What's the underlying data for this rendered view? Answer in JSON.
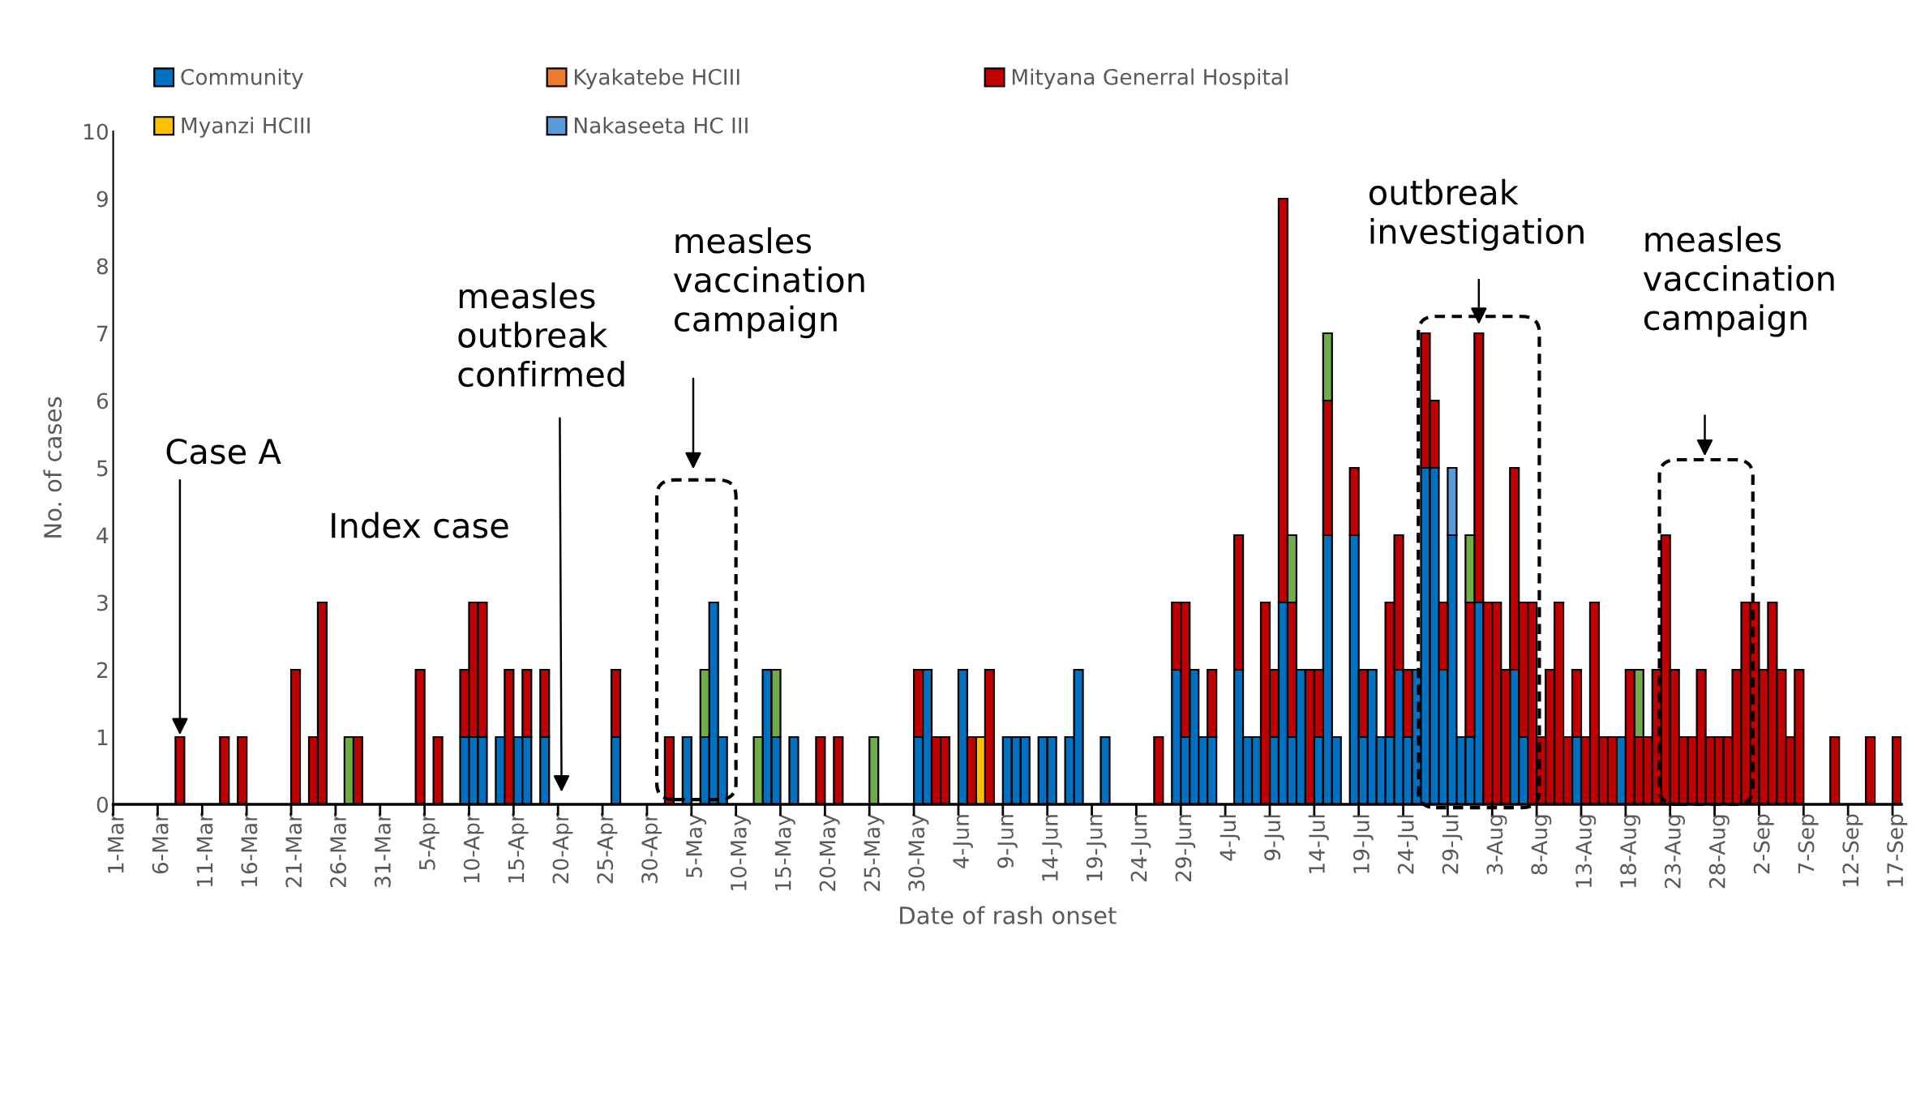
{
  "chart_data": {
    "type": "bar",
    "stacked": true,
    "xlabel": "Date of rash onset",
    "ylabel": "No. of cases",
    "categories": [
      "1-Mar",
      null,
      null,
      null,
      null,
      "6-Mar",
      null,
      null,
      null,
      null,
      "11-Mar",
      null,
      null,
      null,
      null,
      "16-Mar",
      null,
      null,
      null,
      null,
      "21-Mar",
      null,
      null,
      null,
      null,
      "26-Mar",
      null,
      null,
      null,
      null,
      "31-Mar",
      null,
      null,
      null,
      null,
      "5-Apr",
      null,
      null,
      null,
      null,
      "10-Apr",
      null,
      null,
      null,
      null,
      "15-Apr",
      null,
      null,
      null,
      null,
      "20-Apr",
      null,
      null,
      null,
      null,
      "25-Apr",
      null,
      null,
      null,
      null,
      "30-Apr",
      null,
      null,
      null,
      null,
      "5-May",
      null,
      null,
      null,
      null,
      "10-May",
      null,
      null,
      null,
      null,
      "15-May",
      null,
      null,
      null,
      null,
      "20-May",
      null,
      null,
      null,
      null,
      "25-May",
      null,
      null,
      null,
      null,
      "30-May",
      null,
      null,
      null,
      null,
      "4-Jun",
      null,
      null,
      null,
      null,
      "9-Jun",
      null,
      null,
      null,
      null,
      "14-Jun",
      null,
      null,
      null,
      null,
      "19-Jun",
      null,
      null,
      null,
      null,
      "24-Jun",
      null,
      null,
      null,
      null,
      "29-Jun",
      null,
      null,
      null,
      null,
      "4-Jul",
      null,
      null,
      null,
      null,
      "9-Jul",
      null,
      null,
      null,
      null,
      "14-Jul",
      null,
      null,
      null,
      null,
      "19-Jul",
      null,
      null,
      null,
      null,
      "24-Jul",
      null,
      null,
      null,
      null,
      "29-Jul",
      null,
      null,
      null,
      null,
      "3-Aug",
      null,
      null,
      null,
      null,
      "8-Aug",
      null,
      null,
      null,
      null,
      "13-Aug",
      null,
      null,
      null,
      null,
      "18-Aug",
      null,
      null,
      null,
      null,
      "23-Aug",
      null,
      null,
      null,
      null,
      "28-Aug",
      null,
      null,
      null,
      null,
      "2-Sep",
      null,
      null,
      null,
      null,
      "7-Sep",
      null,
      null,
      null,
      null,
      "12-Sep",
      null,
      null,
      null,
      null,
      "17-Sep"
    ],
    "series": [
      {
        "name": "Community",
        "color": "#0070c0",
        "values": [
          0,
          0,
          0,
          0,
          0,
          0,
          0,
          0,
          0,
          0,
          0,
          0,
          0,
          0,
          0,
          0,
          0,
          0,
          0,
          0,
          0,
          0,
          0,
          0,
          0,
          0,
          0,
          0,
          0,
          0,
          0,
          0,
          0,
          0,
          0,
          0,
          0,
          0,
          0,
          1,
          1,
          1,
          0,
          1,
          0,
          1,
          1,
          0,
          1,
          0,
          0,
          0,
          0,
          0,
          0,
          0,
          1,
          0,
          0,
          0,
          0,
          0,
          0,
          0,
          1,
          0,
          1,
          3,
          1,
          0,
          0,
          0,
          0,
          2,
          1,
          0,
          1,
          0,
          0,
          0,
          0,
          0,
          0,
          0,
          0,
          0,
          0,
          0,
          0,
          0,
          1,
          2,
          0,
          0,
          0,
          2,
          0,
          0,
          0,
          0,
          1,
          1,
          1,
          0,
          1,
          1,
          0,
          1,
          2,
          0,
          0,
          1,
          0,
          0,
          0,
          0,
          0,
          0,
          0,
          2,
          1,
          2,
          1,
          1,
          0,
          0,
          2,
          1,
          1,
          0,
          1,
          3,
          1,
          2,
          0,
          1,
          4,
          1,
          0,
          4,
          1,
          2,
          1,
          1,
          2,
          1,
          2,
          5,
          5,
          2,
          4,
          1,
          1,
          3,
          0,
          0,
          0,
          2,
          1,
          0,
          0,
          0,
          0,
          0,
          1,
          0,
          0,
          0,
          0,
          1,
          0,
          0,
          0,
          0,
          0,
          0,
          0,
          0,
          0,
          0,
          0,
          0,
          0,
          0,
          0,
          0,
          0,
          0,
          0,
          0,
          0,
          0,
          0,
          0,
          0,
          0,
          0,
          0,
          0,
          0,
          0
        ]
      },
      {
        "name": "Kyakatebe HCIII",
        "color": "#ed7d31",
        "values": [
          0,
          0,
          0,
          0,
          0,
          0,
          0,
          0,
          0,
          0,
          0,
          0,
          0,
          0,
          0,
          0,
          0,
          0,
          0,
          0,
          0,
          0,
          0,
          0,
          0,
          0,
          0,
          0,
          0,
          0,
          0,
          0,
          0,
          0,
          0,
          0,
          0,
          0,
          0,
          0,
          0,
          0,
          0,
          0,
          0,
          0,
          0,
          0,
          0,
          0,
          0,
          0,
          0,
          0,
          0,
          0,
          0,
          0,
          0,
          0,
          0,
          0,
          0,
          0,
          0,
          0,
          0,
          0,
          0,
          0,
          0,
          0,
          0,
          0,
          0,
          0,
          0,
          0,
          0,
          0,
          0,
          0,
          0,
          0,
          0,
          0,
          0,
          0,
          0,
          0,
          0,
          0,
          0,
          0,
          0,
          0,
          0,
          0,
          0,
          0,
          0,
          0,
          0,
          0,
          0,
          0,
          0,
          0,
          0,
          0,
          0,
          0,
          0,
          0,
          0,
          0,
          0,
          0,
          0,
          0,
          0,
          0,
          0,
          0,
          0,
          0,
          0,
          0,
          0,
          0,
          0,
          0,
          0,
          0,
          0,
          0,
          0,
          0,
          0,
          0,
          0,
          0,
          0,
          0,
          0,
          0,
          0,
          0,
          0,
          0,
          0,
          0,
          0,
          0,
          0,
          0,
          0,
          0,
          0,
          0,
          0,
          0,
          0,
          0,
          0,
          0,
          0,
          0,
          0,
          0,
          0,
          0,
          0,
          0,
          0,
          0,
          0,
          0,
          0,
          0,
          0,
          0,
          0,
          0,
          0,
          0,
          0,
          0,
          0,
          0,
          0,
          0,
          0,
          0,
          0,
          0,
          0,
          0,
          0,
          0,
          0
        ]
      },
      {
        "name": "Mityana Generral Hospital",
        "color": "#c00000",
        "values": [
          0,
          0,
          0,
          0,
          0,
          0,
          0,
          1,
          0,
          0,
          0,
          0,
          1,
          0,
          1,
          0,
          0,
          0,
          0,
          0,
          2,
          0,
          1,
          3,
          0,
          0,
          0,
          1,
          0,
          0,
          0,
          0,
          0,
          0,
          2,
          0,
          1,
          0,
          0,
          1,
          2,
          2,
          0,
          0,
          2,
          0,
          1,
          0,
          1,
          0,
          0,
          0,
          0,
          0,
          0,
          0,
          1,
          0,
          0,
          0,
          0,
          0,
          1,
          0,
          0,
          0,
          0,
          0,
          0,
          0,
          0,
          0,
          0,
          0,
          0,
          0,
          0,
          0,
          0,
          1,
          0,
          1,
          0,
          0,
          0,
          0,
          0,
          0,
          0,
          0,
          1,
          0,
          1,
          1,
          0,
          0,
          1,
          0,
          2,
          0,
          0,
          0,
          0,
          0,
          0,
          0,
          0,
          0,
          0,
          0,
          0,
          0,
          0,
          0,
          0,
          0,
          0,
          1,
          0,
          1,
          2,
          0,
          0,
          1,
          0,
          0,
          2,
          0,
          0,
          3,
          1,
          6,
          2,
          0,
          2,
          1,
          2,
          0,
          0,
          1,
          1,
          0,
          0,
          2,
          2,
          1,
          0,
          2,
          1,
          1,
          0,
          0,
          2,
          4,
          3,
          3,
          2,
          3,
          2,
          3,
          1,
          2,
          3,
          1,
          1,
          1,
          3,
          1,
          1,
          0,
          2,
          1,
          1,
          2,
          4,
          2,
          1,
          1,
          2,
          1,
          1,
          1,
          2,
          3,
          3,
          2,
          3,
          2,
          1,
          2,
          0,
          0,
          0,
          1,
          0,
          0,
          0,
          1,
          0,
          0,
          1
        ]
      },
      {
        "name": "Myanzi HCIII",
        "color": "#ffc000",
        "values": [
          0,
          0,
          0,
          0,
          0,
          0,
          0,
          0,
          0,
          0,
          0,
          0,
          0,
          0,
          0,
          0,
          0,
          0,
          0,
          0,
          0,
          0,
          0,
          0,
          0,
          0,
          0,
          0,
          0,
          0,
          0,
          0,
          0,
          0,
          0,
          0,
          0,
          0,
          0,
          0,
          0,
          0,
          0,
          0,
          0,
          0,
          0,
          0,
          0,
          0,
          0,
          0,
          0,
          0,
          0,
          0,
          0,
          0,
          0,
          0,
          0,
          0,
          0,
          0,
          0,
          0,
          0,
          0,
          0,
          0,
          0,
          0,
          0,
          0,
          0,
          0,
          0,
          0,
          0,
          0,
          0,
          0,
          0,
          0,
          0,
          0,
          0,
          0,
          0,
          0,
          0,
          0,
          0,
          0,
          0,
          0,
          0,
          1,
          0,
          0,
          0,
          0,
          0,
          0,
          0,
          0,
          0,
          0,
          0,
          0,
          0,
          0,
          0,
          0,
          0,
          0,
          0,
          0,
          0,
          0,
          0,
          0,
          0,
          0,
          0,
          0,
          0,
          0,
          0,
          0,
          0,
          0,
          0,
          0,
          0,
          0,
          0,
          0,
          0,
          0,
          0,
          0,
          0,
          0,
          0,
          0,
          0,
          0,
          0,
          0,
          0,
          0,
          0,
          0,
          0,
          0,
          0,
          0,
          0,
          0,
          0,
          0,
          0,
          0,
          0,
          0,
          0,
          0,
          0,
          0,
          0,
          0,
          0,
          0,
          0,
          0,
          0,
          0,
          0,
          0,
          0,
          0,
          0,
          0,
          0,
          0,
          0,
          0,
          0,
          0,
          0,
          0,
          0,
          0,
          0,
          0,
          0,
          0,
          0,
          0,
          0
        ]
      },
      {
        "name": "Nakaseeta HC III",
        "color": "#5b9bd5",
        "values": [
          0,
          0,
          0,
          0,
          0,
          0,
          0,
          0,
          0,
          0,
          0,
          0,
          0,
          0,
          0,
          0,
          0,
          0,
          0,
          0,
          0,
          0,
          0,
          0,
          0,
          0,
          0,
          0,
          0,
          0,
          0,
          0,
          0,
          0,
          0,
          0,
          0,
          0,
          0,
          0,
          0,
          0,
          0,
          0,
          0,
          0,
          0,
          0,
          0,
          0,
          0,
          0,
          0,
          0,
          0,
          0,
          0,
          0,
          0,
          0,
          0,
          0,
          0,
          0,
          0,
          0,
          0,
          0,
          0,
          0,
          0,
          0,
          0,
          0,
          0,
          0,
          0,
          0,
          0,
          0,
          0,
          0,
          0,
          0,
          0,
          0,
          0,
          0,
          0,
          0,
          0,
          0,
          0,
          0,
          0,
          0,
          0,
          0,
          0,
          0,
          0,
          0,
          0,
          0,
          0,
          0,
          0,
          0,
          0,
          0,
          0,
          0,
          0,
          0,
          0,
          0,
          0,
          0,
          0,
          0,
          0,
          0,
          0,
          0,
          0,
          0,
          0,
          0,
          0,
          0,
          0,
          0,
          0,
          0,
          0,
          0,
          0,
          0,
          0,
          0,
          0,
          0,
          0,
          0,
          0,
          0,
          0,
          0,
          0,
          0,
          1,
          0,
          0,
          0,
          0,
          0,
          0,
          0,
          0,
          0,
          0,
          0,
          0,
          0,
          0,
          0,
          0,
          0,
          0,
          0,
          0,
          0,
          0,
          0,
          0,
          0,
          0,
          0,
          0,
          0,
          0,
          0,
          0,
          0,
          0,
          0,
          0,
          0,
          0,
          0,
          0,
          0,
          0,
          0,
          0,
          0,
          0,
          0,
          0,
          0,
          0
        ]
      },
      {
        "color": "#70ad47",
        "values": [
          0,
          0,
          0,
          0,
          0,
          0,
          0,
          0,
          0,
          0,
          0,
          0,
          0,
          0,
          0,
          0,
          0,
          0,
          0,
          0,
          0,
          0,
          0,
          0,
          0,
          0,
          1,
          0,
          0,
          0,
          0,
          0,
          0,
          0,
          0,
          0,
          0,
          0,
          0,
          0,
          0,
          0,
          0,
          0,
          0,
          0,
          0,
          0,
          0,
          0,
          0,
          0,
          0,
          0,
          0,
          0,
          0,
          0,
          0,
          0,
          0,
          0,
          0,
          0,
          0,
          0,
          1,
          0,
          0,
          0,
          0,
          0,
          1,
          0,
          1,
          0,
          0,
          0,
          0,
          0,
          0,
          0,
          0,
          0,
          0,
          1,
          0,
          0,
          0,
          0,
          0,
          0,
          0,
          0,
          0,
          0,
          0,
          0,
          0,
          0,
          0,
          0,
          0,
          0,
          0,
          0,
          0,
          0,
          0,
          0,
          0,
          0,
          0,
          0,
          0,
          0,
          0,
          0,
          0,
          0,
          0,
          0,
          0,
          0,
          0,
          0,
          0,
          0,
          0,
          0,
          0,
          0,
          1,
          0,
          0,
          0,
          1,
          0,
          0,
          0,
          0,
          0,
          0,
          0,
          0,
          0,
          0,
          0,
          0,
          0,
          0,
          0,
          1,
          0,
          0,
          0,
          0,
          0,
          0,
          0,
          0,
          0,
          0,
          0,
          0,
          0,
          0,
          0,
          0,
          0,
          0,
          1,
          0,
          0,
          0,
          0,
          0,
          0,
          0,
          0,
          0,
          0,
          0,
          0,
          0,
          0,
          0,
          0,
          0,
          0,
          0,
          0,
          0,
          0,
          0,
          0,
          0,
          0,
          0,
          0,
          0
        ]
      }
    ],
    "ylim": [
      0,
      10
    ],
    "yticks": [
      0,
      1,
      2,
      3,
      4,
      5,
      6,
      7,
      8,
      9,
      10
    ],
    "grid": false,
    "legend": "top",
    "annotations": [
      "Case A",
      "Index case",
      "measles\noutbreak\nconfirmed",
      "measles\nvaccination\ncampaign",
      "outbreak\ninvestigation",
      "measles\nvaccination\ncampaign"
    ]
  }
}
